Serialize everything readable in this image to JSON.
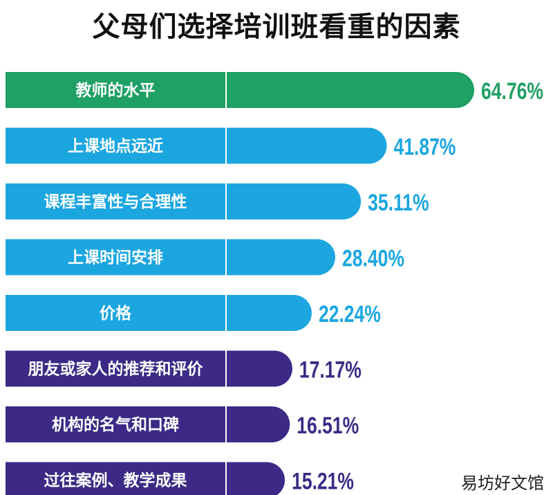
{
  "chart_data": {
    "type": "bar",
    "orientation": "horizontal",
    "title": "父母们选择培训班看重的因素",
    "categories": [
      "教师的水平",
      "上课地点远近",
      "课程丰富性与合理性",
      "上课时间安排",
      "价格",
      "朋友或家人的推荐和评价",
      "机构的名气和口碑",
      "过往案例、教学成果"
    ],
    "values": [
      64.76,
      41.87,
      35.11,
      28.4,
      22.24,
      17.17,
      16.51,
      15.21
    ],
    "value_labels": [
      "64.76%",
      "41.87%",
      "35.11%",
      "28.40%",
      "22.24%",
      "17.17%",
      "16.51%",
      "15.21%"
    ],
    "colors": [
      "#1fa064",
      "#1ba6e0",
      "#1ba6e0",
      "#1ba6e0",
      "#1ba6e0",
      "#3c2a86",
      "#3c2a86",
      "#3c2a86"
    ],
    "grid": false,
    "legend": "none"
  },
  "watermark": "易坊好文馆"
}
